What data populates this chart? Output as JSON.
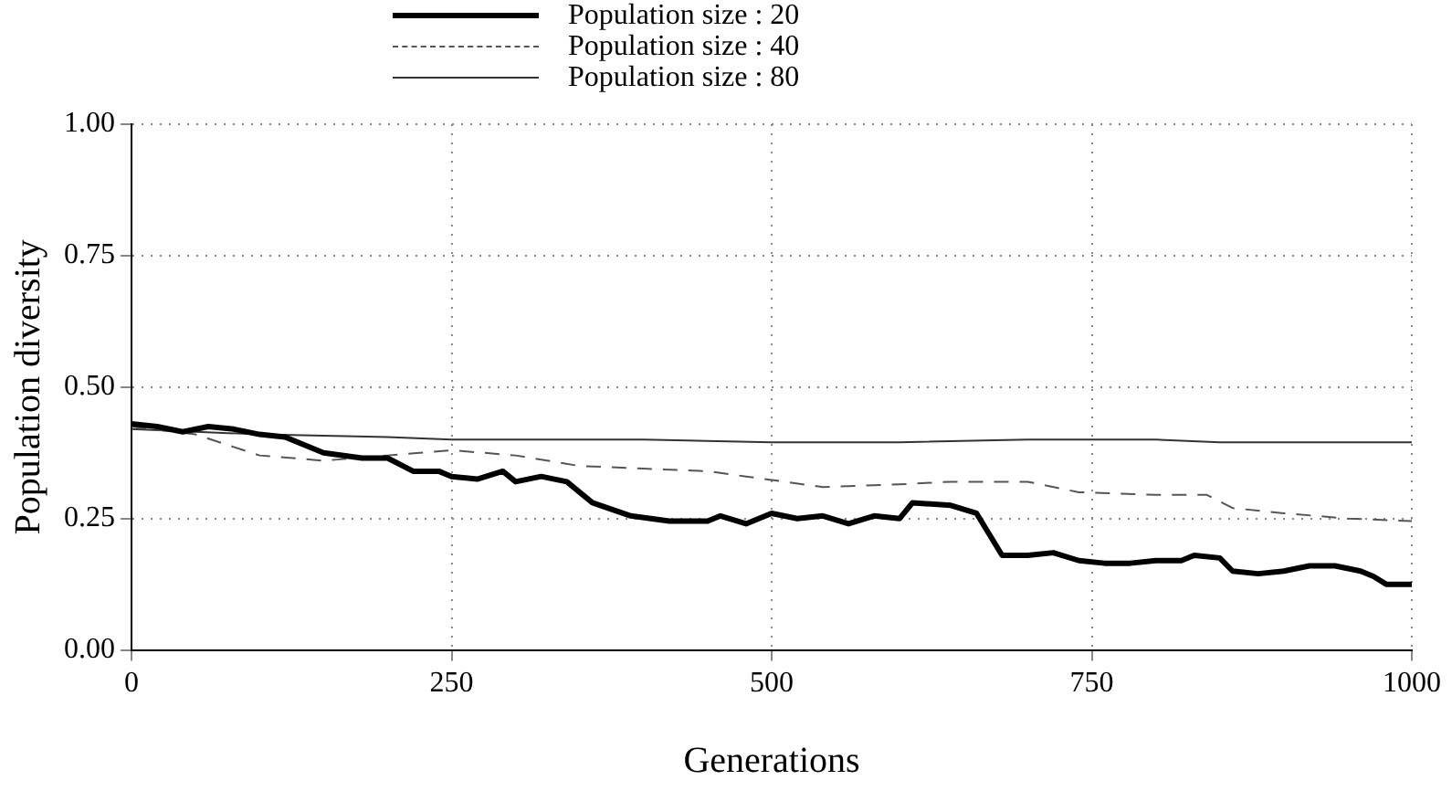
{
  "chart_data": {
    "type": "line",
    "xlabel": "Generations",
    "ylabel": "Population diversity",
    "xlim": [
      0,
      1000
    ],
    "xticks": [
      0,
      250,
      500,
      750,
      1000
    ],
    "ylim": [
      0,
      1
    ],
    "yticks": [
      {
        "value": 0,
        "label": "0.00"
      },
      {
        "value": 0.25,
        "label": "0.25"
      },
      {
        "value": 0.5,
        "label": "0.50"
      },
      {
        "value": 0.75,
        "label": "0.75"
      },
      {
        "value": 1,
        "label": "1.00"
      }
    ],
    "grid": true,
    "legend": "top",
    "marker": "none",
    "series": [
      {
        "name": "Population size : 20",
        "color": "#000000",
        "line_style": "solid",
        "x": [
          0,
          20,
          40,
          60,
          80,
          100,
          120,
          150,
          180,
          200,
          220,
          240,
          250,
          270,
          290,
          300,
          320,
          340,
          360,
          390,
          420,
          450,
          460,
          480,
          500,
          520,
          540,
          560,
          580,
          600,
          610,
          640,
          660,
          680,
          700,
          720,
          740,
          760,
          780,
          800,
          820,
          830,
          850,
          860,
          880,
          900,
          920,
          940,
          960,
          970,
          980,
          1000
        ],
        "values": [
          0.43,
          0.425,
          0.415,
          0.425,
          0.42,
          0.41,
          0.405,
          0.375,
          0.365,
          0.365,
          0.34,
          0.34,
          0.33,
          0.325,
          0.34,
          0.32,
          0.33,
          0.32,
          0.28,
          0.255,
          0.245,
          0.245,
          0.255,
          0.24,
          0.26,
          0.25,
          0.255,
          0.24,
          0.255,
          0.25,
          0.28,
          0.275,
          0.26,
          0.18,
          0.18,
          0.185,
          0.17,
          0.165,
          0.165,
          0.17,
          0.17,
          0.18,
          0.175,
          0.15,
          0.145,
          0.15,
          0.16,
          0.16,
          0.15,
          0.14,
          0.125,
          0.125
        ]
      },
      {
        "name": "Population size : 40",
        "color": "#555555",
        "line_style": "dashed",
        "x": [
          0,
          50,
          100,
          150,
          200,
          250,
          300,
          350,
          400,
          450,
          480,
          510,
          540,
          600,
          640,
          700,
          740,
          800,
          840,
          860,
          900,
          950,
          1000
        ],
        "values": [
          0.425,
          0.41,
          0.37,
          0.36,
          0.37,
          0.38,
          0.37,
          0.35,
          0.345,
          0.34,
          0.33,
          0.32,
          0.31,
          0.315,
          0.32,
          0.32,
          0.3,
          0.295,
          0.295,
          0.27,
          0.26,
          0.25,
          0.245
        ]
      },
      {
        "name": "Population size : 80",
        "color": "#333333",
        "line_style": "solid",
        "x": [
          0,
          100,
          200,
          250,
          300,
          400,
          500,
          600,
          700,
          800,
          850,
          1000
        ],
        "values": [
          0.42,
          0.41,
          0.405,
          0.4,
          0.4,
          0.4,
          0.395,
          0.395,
          0.4,
          0.4,
          0.395,
          0.395
        ]
      }
    ]
  }
}
